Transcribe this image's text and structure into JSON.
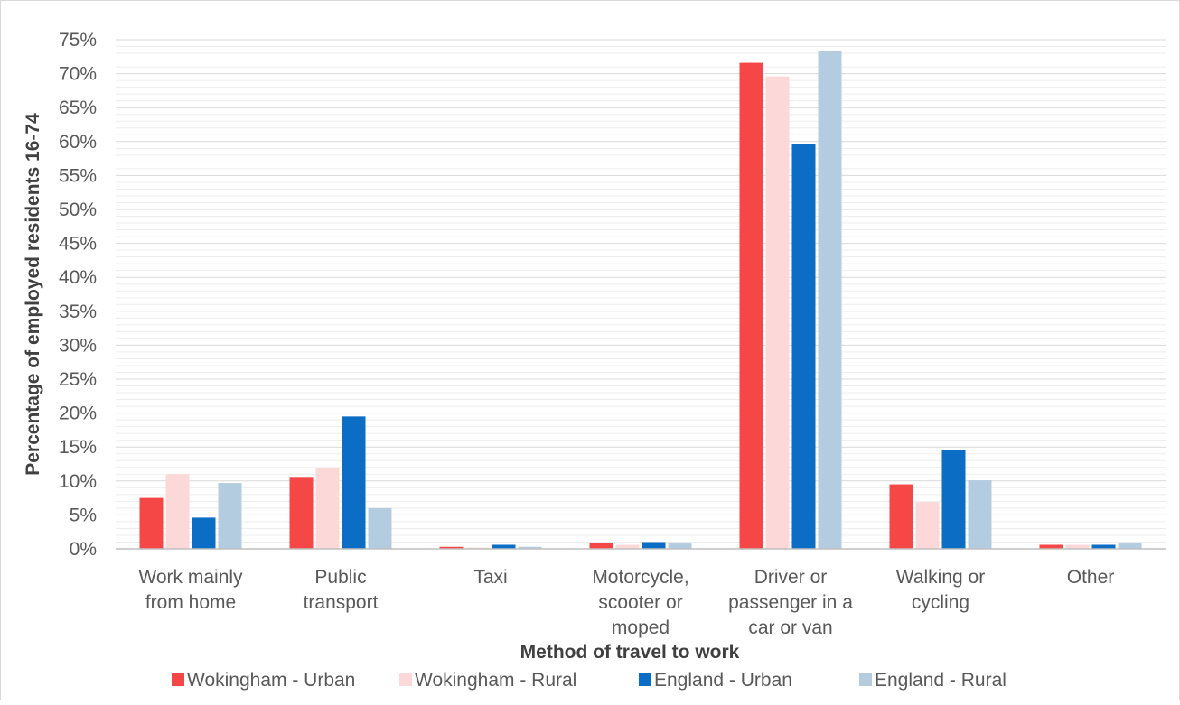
{
  "chart_data": {
    "type": "bar",
    "title": "",
    "xlabel": "Method of travel to work",
    "ylabel": "Percentage of employed residents 16-74",
    "ylim": [
      0,
      75
    ],
    "y_major_step": 5,
    "y_minor_step": 1,
    "y_tick_format": "percent",
    "grid": true,
    "legend_position": "bottom",
    "categories": [
      [
        "Work mainly",
        "from home"
      ],
      [
        "Public",
        "transport"
      ],
      [
        "Taxi"
      ],
      [
        "Motorcycle,",
        "scooter or",
        "moped"
      ],
      [
        "Driver or",
        "passenger in a",
        "car or van"
      ],
      [
        "Walking or",
        "cycling"
      ],
      [
        "Other"
      ]
    ],
    "series": [
      {
        "name": "Wokingham - Urban",
        "color": "#F64747",
        "values": [
          7.5,
          10.6,
          0.3,
          0.8,
          71.6,
          9.5,
          0.6
        ]
      },
      {
        "name": "Wokingham - Rural",
        "color": "#FDD8D8",
        "values": [
          11.0,
          11.9,
          0.2,
          0.6,
          69.6,
          6.9,
          0.6
        ]
      },
      {
        "name": "England - Urban",
        "color": "#0B6DC4",
        "values": [
          4.6,
          19.5,
          0.6,
          1.0,
          59.7,
          14.6,
          0.6
        ]
      },
      {
        "name": "England - Rural",
        "color": "#B4CCE0",
        "values": [
          9.7,
          6.0,
          0.3,
          0.8,
          73.3,
          10.1,
          0.8
        ]
      }
    ]
  }
}
